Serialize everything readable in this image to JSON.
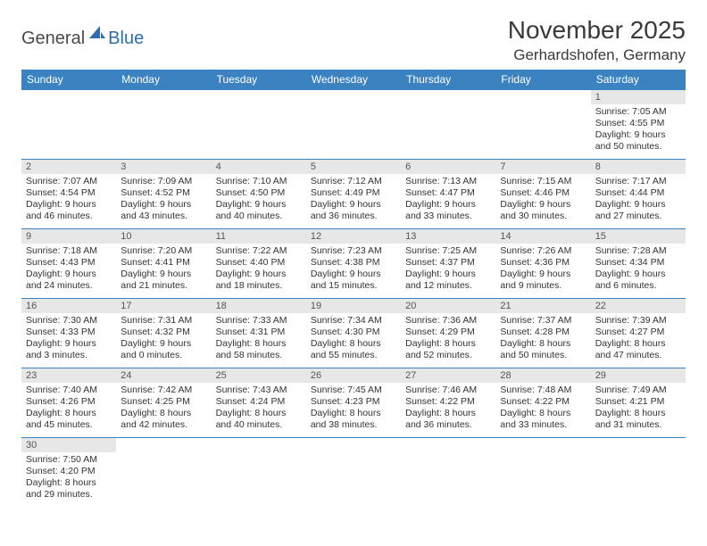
{
  "brand": {
    "part1": "General",
    "part2": "Blue"
  },
  "title": "November 2025",
  "location": "Gerhardshofen, Germany",
  "colors": {
    "header_bg": "#3b83c0",
    "header_text": "#ffffff",
    "daynum_bg": "#e7e7e7",
    "rule": "#3b83c0",
    "logo_accent": "#2b6fb0"
  },
  "weekdays": [
    "Sunday",
    "Monday",
    "Tuesday",
    "Wednesday",
    "Thursday",
    "Friday",
    "Saturday"
  ],
  "weeks": [
    [
      null,
      null,
      null,
      null,
      null,
      null,
      {
        "n": "1",
        "sr": "Sunrise: 7:05 AM",
        "ss": "Sunset: 4:55 PM",
        "dl": "Daylight: 9 hours and 50 minutes."
      }
    ],
    [
      {
        "n": "2",
        "sr": "Sunrise: 7:07 AM",
        "ss": "Sunset: 4:54 PM",
        "dl": "Daylight: 9 hours and 46 minutes."
      },
      {
        "n": "3",
        "sr": "Sunrise: 7:09 AM",
        "ss": "Sunset: 4:52 PM",
        "dl": "Daylight: 9 hours and 43 minutes."
      },
      {
        "n": "4",
        "sr": "Sunrise: 7:10 AM",
        "ss": "Sunset: 4:50 PM",
        "dl": "Daylight: 9 hours and 40 minutes."
      },
      {
        "n": "5",
        "sr": "Sunrise: 7:12 AM",
        "ss": "Sunset: 4:49 PM",
        "dl": "Daylight: 9 hours and 36 minutes."
      },
      {
        "n": "6",
        "sr": "Sunrise: 7:13 AM",
        "ss": "Sunset: 4:47 PM",
        "dl": "Daylight: 9 hours and 33 minutes."
      },
      {
        "n": "7",
        "sr": "Sunrise: 7:15 AM",
        "ss": "Sunset: 4:46 PM",
        "dl": "Daylight: 9 hours and 30 minutes."
      },
      {
        "n": "8",
        "sr": "Sunrise: 7:17 AM",
        "ss": "Sunset: 4:44 PM",
        "dl": "Daylight: 9 hours and 27 minutes."
      }
    ],
    [
      {
        "n": "9",
        "sr": "Sunrise: 7:18 AM",
        "ss": "Sunset: 4:43 PM",
        "dl": "Daylight: 9 hours and 24 minutes."
      },
      {
        "n": "10",
        "sr": "Sunrise: 7:20 AM",
        "ss": "Sunset: 4:41 PM",
        "dl": "Daylight: 9 hours and 21 minutes."
      },
      {
        "n": "11",
        "sr": "Sunrise: 7:22 AM",
        "ss": "Sunset: 4:40 PM",
        "dl": "Daylight: 9 hours and 18 minutes."
      },
      {
        "n": "12",
        "sr": "Sunrise: 7:23 AM",
        "ss": "Sunset: 4:38 PM",
        "dl": "Daylight: 9 hours and 15 minutes."
      },
      {
        "n": "13",
        "sr": "Sunrise: 7:25 AM",
        "ss": "Sunset: 4:37 PM",
        "dl": "Daylight: 9 hours and 12 minutes."
      },
      {
        "n": "14",
        "sr": "Sunrise: 7:26 AM",
        "ss": "Sunset: 4:36 PM",
        "dl": "Daylight: 9 hours and 9 minutes."
      },
      {
        "n": "15",
        "sr": "Sunrise: 7:28 AM",
        "ss": "Sunset: 4:34 PM",
        "dl": "Daylight: 9 hours and 6 minutes."
      }
    ],
    [
      {
        "n": "16",
        "sr": "Sunrise: 7:30 AM",
        "ss": "Sunset: 4:33 PM",
        "dl": "Daylight: 9 hours and 3 minutes."
      },
      {
        "n": "17",
        "sr": "Sunrise: 7:31 AM",
        "ss": "Sunset: 4:32 PM",
        "dl": "Daylight: 9 hours and 0 minutes."
      },
      {
        "n": "18",
        "sr": "Sunrise: 7:33 AM",
        "ss": "Sunset: 4:31 PM",
        "dl": "Daylight: 8 hours and 58 minutes."
      },
      {
        "n": "19",
        "sr": "Sunrise: 7:34 AM",
        "ss": "Sunset: 4:30 PM",
        "dl": "Daylight: 8 hours and 55 minutes."
      },
      {
        "n": "20",
        "sr": "Sunrise: 7:36 AM",
        "ss": "Sunset: 4:29 PM",
        "dl": "Daylight: 8 hours and 52 minutes."
      },
      {
        "n": "21",
        "sr": "Sunrise: 7:37 AM",
        "ss": "Sunset: 4:28 PM",
        "dl": "Daylight: 8 hours and 50 minutes."
      },
      {
        "n": "22",
        "sr": "Sunrise: 7:39 AM",
        "ss": "Sunset: 4:27 PM",
        "dl": "Daylight: 8 hours and 47 minutes."
      }
    ],
    [
      {
        "n": "23",
        "sr": "Sunrise: 7:40 AM",
        "ss": "Sunset: 4:26 PM",
        "dl": "Daylight: 8 hours and 45 minutes."
      },
      {
        "n": "24",
        "sr": "Sunrise: 7:42 AM",
        "ss": "Sunset: 4:25 PM",
        "dl": "Daylight: 8 hours and 42 minutes."
      },
      {
        "n": "25",
        "sr": "Sunrise: 7:43 AM",
        "ss": "Sunset: 4:24 PM",
        "dl": "Daylight: 8 hours and 40 minutes."
      },
      {
        "n": "26",
        "sr": "Sunrise: 7:45 AM",
        "ss": "Sunset: 4:23 PM",
        "dl": "Daylight: 8 hours and 38 minutes."
      },
      {
        "n": "27",
        "sr": "Sunrise: 7:46 AM",
        "ss": "Sunset: 4:22 PM",
        "dl": "Daylight: 8 hours and 36 minutes."
      },
      {
        "n": "28",
        "sr": "Sunrise: 7:48 AM",
        "ss": "Sunset: 4:22 PM",
        "dl": "Daylight: 8 hours and 33 minutes."
      },
      {
        "n": "29",
        "sr": "Sunrise: 7:49 AM",
        "ss": "Sunset: 4:21 PM",
        "dl": "Daylight: 8 hours and 31 minutes."
      }
    ],
    [
      {
        "n": "30",
        "sr": "Sunrise: 7:50 AM",
        "ss": "Sunset: 4:20 PM",
        "dl": "Daylight: 8 hours and 29 minutes."
      },
      null,
      null,
      null,
      null,
      null,
      null
    ]
  ]
}
